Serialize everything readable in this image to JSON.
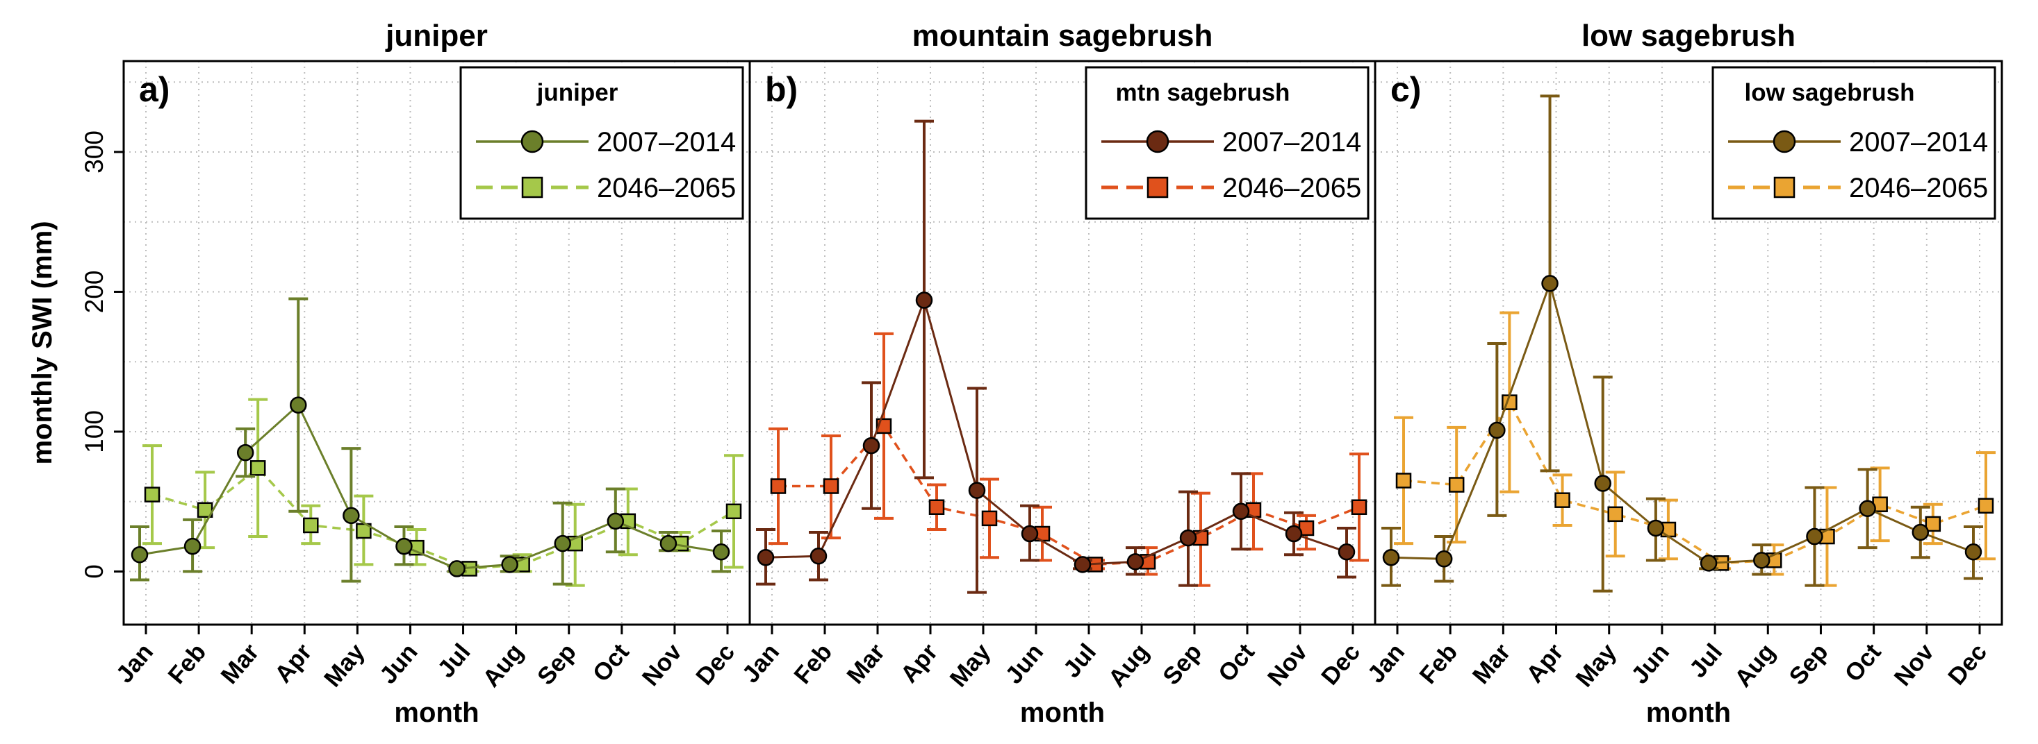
{
  "chart_data": [
    {
      "type": "line",
      "title": "juniper",
      "panel_label": "a)",
      "xlabel": "month",
      "ylabel": "monthly SWI (mm)",
      "categories": [
        "Jan",
        "Feb",
        "Mar",
        "Apr",
        "May",
        "Jun",
        "Jul",
        "Aug",
        "Sep",
        "Oct",
        "Nov",
        "Dec"
      ],
      "ylim": [
        -38,
        365
      ],
      "yticks": [
        0,
        100,
        200,
        300
      ],
      "grid": true,
      "legend_title": "juniper",
      "legend_position": "top-right",
      "series": [
        {
          "name": "2007–2014",
          "color": "#6b7f2a",
          "marker": "circle",
          "dash": "solid",
          "values": [
            12,
            18,
            85,
            119,
            40,
            18,
            2,
            5,
            20,
            36,
            20,
            14
          ],
          "lower": [
            -6,
            0,
            68,
            43,
            -7,
            5,
            0,
            0,
            -9,
            14,
            15,
            0
          ],
          "upper": [
            32,
            37,
            102,
            195,
            88,
            32,
            4,
            11,
            49,
            59,
            28,
            29
          ]
        },
        {
          "name": "2046–2065",
          "color": "#a5c84a",
          "marker": "square",
          "dash": "dashed",
          "values": [
            55,
            44,
            74,
            33,
            29,
            17,
            2,
            5,
            20,
            36,
            20,
            43
          ],
          "lower": [
            20,
            17,
            25,
            20,
            5,
            5,
            0,
            0,
            -10,
            12,
            15,
            3
          ],
          "upper": [
            90,
            71,
            123,
            47,
            54,
            30,
            4,
            12,
            48,
            59,
            28,
            83
          ]
        }
      ]
    },
    {
      "type": "line",
      "title": "mountain sagebrush",
      "panel_label": "b)",
      "xlabel": "month",
      "categories": [
        "Jan",
        "Feb",
        "Mar",
        "Apr",
        "May",
        "Jun",
        "Jul",
        "Aug",
        "Sep",
        "Oct",
        "Nov",
        "Dec"
      ],
      "ylim": [
        -38,
        365
      ],
      "grid": true,
      "legend_title": "mtn sagebrush",
      "legend_position": "top-right",
      "series": [
        {
          "name": "2007–2014",
          "color": "#6b2a12",
          "marker": "circle",
          "dash": "solid",
          "values": [
            10,
            11,
            90,
            194,
            58,
            27,
            5,
            7,
            24,
            43,
            27,
            14
          ],
          "lower": [
            -9,
            -6,
            45,
            67,
            -15,
            8,
            2,
            -2,
            -10,
            16,
            12,
            -4
          ],
          "upper": [
            30,
            28,
            135,
            322,
            131,
            47,
            8,
            17,
            57,
            70,
            42,
            31
          ]
        },
        {
          "name": "2046–2065",
          "color": "#e0511c",
          "marker": "square",
          "dash": "dashed",
          "values": [
            61,
            61,
            104,
            46,
            38,
            27,
            5,
            7,
            24,
            44,
            31,
            46
          ],
          "lower": [
            20,
            24,
            38,
            30,
            10,
            8,
            2,
            -2,
            -10,
            16,
            16,
            8
          ],
          "upper": [
            102,
            97,
            170,
            62,
            66,
            46,
            8,
            17,
            56,
            70,
            40,
            84
          ]
        }
      ]
    },
    {
      "type": "line",
      "title": "low sagebrush",
      "panel_label": "c)",
      "xlabel": "month",
      "categories": [
        "Jan",
        "Feb",
        "Mar",
        "Apr",
        "May",
        "Jun",
        "Jul",
        "Aug",
        "Sep",
        "Oct",
        "Nov",
        "Dec"
      ],
      "ylim": [
        -38,
        365
      ],
      "grid": true,
      "legend_title": "low sagebrush",
      "legend_position": "top-right",
      "series": [
        {
          "name": "2007–2014",
          "color": "#7a5a14",
          "marker": "circle",
          "dash": "solid",
          "values": [
            10,
            9,
            101,
            206,
            63,
            31,
            6,
            8,
            25,
            45,
            28,
            14
          ],
          "lower": [
            -10,
            -7,
            40,
            72,
            -14,
            8,
            2,
            -2,
            -10,
            17,
            10,
            -5
          ],
          "upper": [
            31,
            25,
            163,
            340,
            139,
            52,
            9,
            19,
            60,
            73,
            46,
            32
          ]
        },
        {
          "name": "2046–2065",
          "color": "#eaa432",
          "marker": "square",
          "dash": "dashed",
          "values": [
            65,
            62,
            121,
            51,
            41,
            30,
            6,
            8,
            25,
            48,
            34,
            47
          ],
          "lower": [
            20,
            21,
            57,
            33,
            11,
            9,
            2,
            -2,
            -10,
            22,
            20,
            9
          ],
          "upper": [
            110,
            103,
            185,
            69,
            71,
            51,
            9,
            19,
            60,
            74,
            48,
            85
          ]
        }
      ]
    }
  ]
}
